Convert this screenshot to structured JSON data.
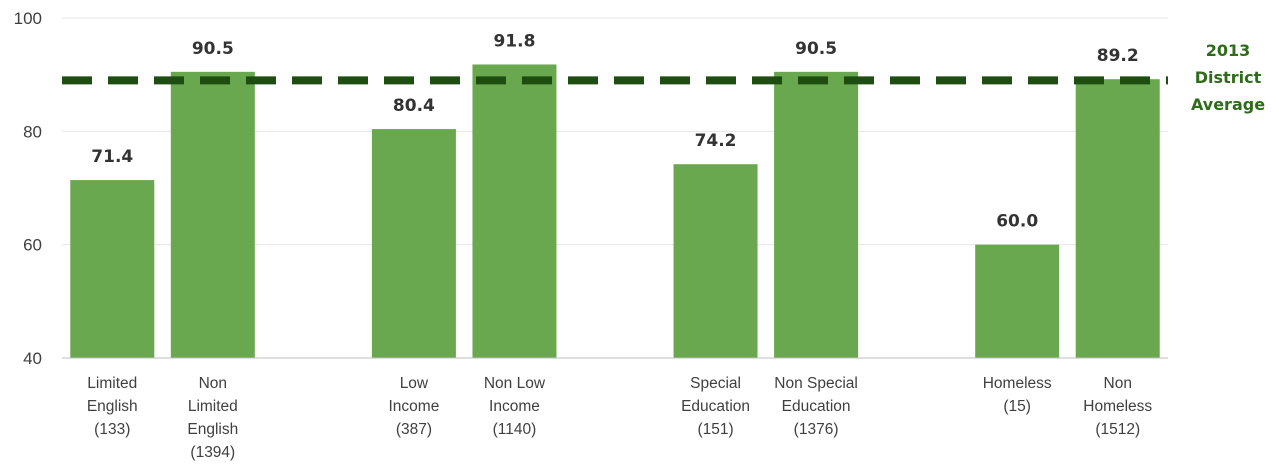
{
  "chart_data": {
    "type": "bar",
    "categories": [
      [
        "Limited",
        "English",
        "(133)"
      ],
      [
        "Non",
        "Limited",
        "English",
        "(1394)"
      ],
      null,
      [
        "Low",
        "Income",
        "(387)"
      ],
      [
        "Non Low",
        "Income",
        "(1140)"
      ],
      null,
      [
        "Special",
        "Education",
        "(151)"
      ],
      [
        "Non Special",
        "Education",
        "(1376)"
      ],
      null,
      [
        "Homeless",
        "(15)"
      ],
      [
        "Non",
        "Homeless",
        "(1512)"
      ]
    ],
    "values": [
      71.4,
      90.5,
      null,
      80.4,
      91.8,
      null,
      74.2,
      90.5,
      null,
      60.0,
      89.2
    ],
    "data_labels": [
      "71.4",
      "90.5",
      "",
      "80.4",
      "91.8",
      "",
      "74.2",
      "90.5",
      "",
      "60.0",
      "89.2"
    ],
    "ylim": [
      40,
      100
    ],
    "yticks": [
      "40",
      "60",
      "80",
      "100"
    ],
    "grid": true,
    "reference_line": {
      "value": 89,
      "label": [
        "2013",
        "District",
        "Average"
      ],
      "style": "dashed"
    },
    "colors": {
      "bar": "#6aa84f",
      "reference_line": "#1e4d12",
      "reference_label": "#2e6b1a",
      "grid": "#e6e6e6",
      "axis": "#bfbfbf"
    }
  }
}
